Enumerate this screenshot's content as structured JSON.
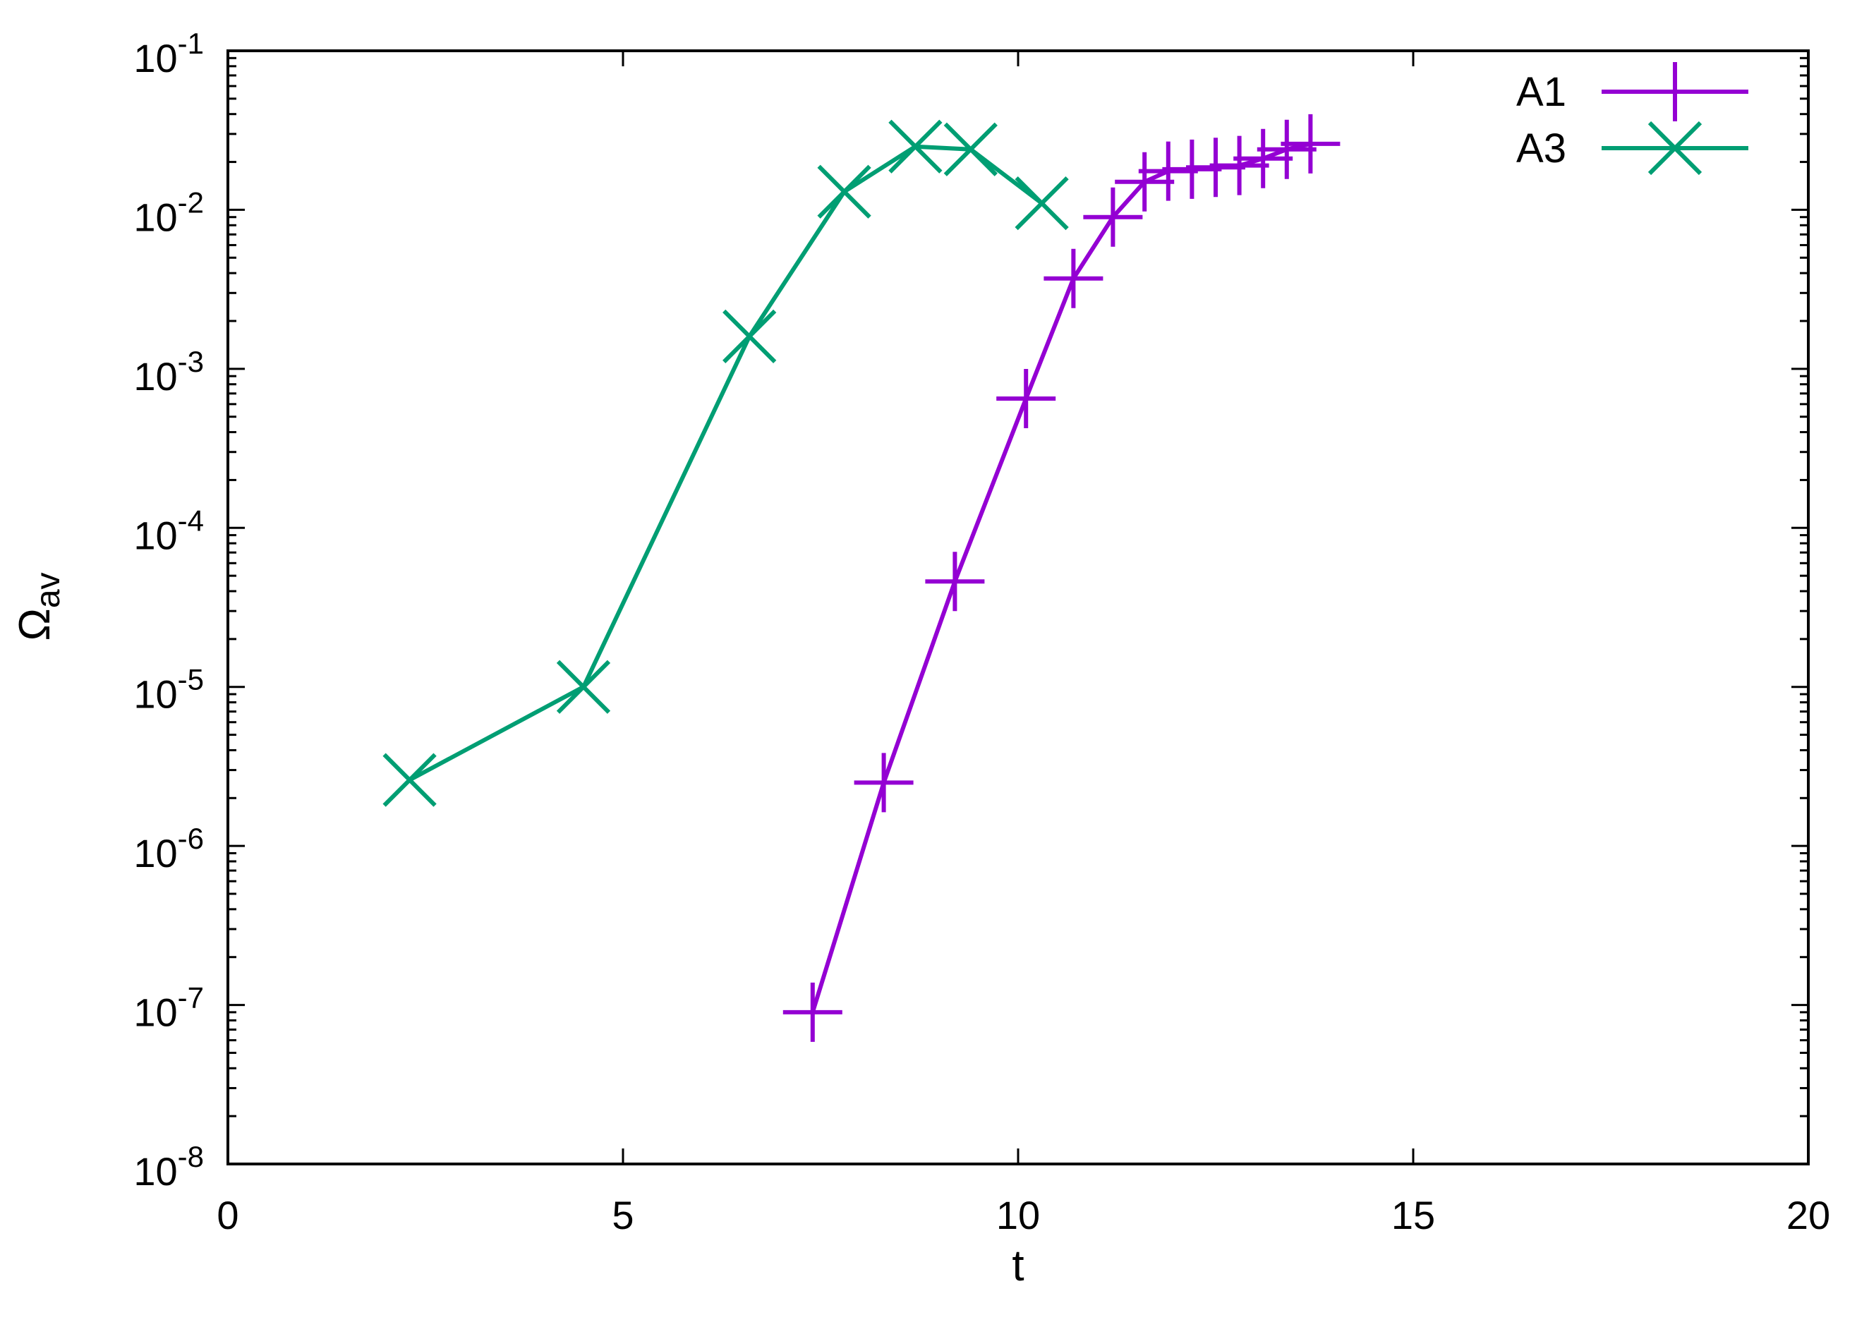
{
  "chart_data": {
    "type": "line",
    "xlabel": "t",
    "ylabel": "Ω",
    "ylabel_sub": "av",
    "xlim": [
      0,
      20
    ],
    "ylim_exp": [
      -8,
      -1
    ],
    "y_scale": "log",
    "x_ticks": [
      "0",
      "5",
      "10",
      "15",
      "20"
    ],
    "y_ticks": [
      {
        "base": "10",
        "exp": "-8"
      },
      {
        "base": "10",
        "exp": "-7"
      },
      {
        "base": "10",
        "exp": "-6"
      },
      {
        "base": "10",
        "exp": "-5"
      },
      {
        "base": "10",
        "exp": "-4"
      },
      {
        "base": "10",
        "exp": "-3"
      },
      {
        "base": "10",
        "exp": "-2"
      },
      {
        "base": "10",
        "exp": "-1"
      }
    ],
    "legend_position": "top-right",
    "grid": false,
    "series": [
      {
        "name": "A1",
        "color": "#9400d3",
        "marker": "plus",
        "x": [
          7.4,
          8.3,
          9.2,
          10.1,
          10.7,
          11.2,
          11.6,
          11.9,
          12.2,
          12.5,
          12.8,
          13.1,
          13.4,
          13.7
        ],
        "y": [
          9e-08,
          2.5e-06,
          4.6e-05,
          0.00065,
          0.0037,
          0.009,
          0.015,
          0.0175,
          0.018,
          0.0185,
          0.019,
          0.021,
          0.024,
          0.026
        ]
      },
      {
        "name": "A3",
        "color": "#009e73",
        "marker": "cross",
        "x": [
          2.3,
          4.5,
          6.6,
          7.8,
          8.7,
          9.4,
          10.3
        ],
        "y": [
          2.6e-06,
          1e-05,
          0.0016,
          0.013,
          0.025,
          0.024,
          0.011
        ]
      }
    ]
  }
}
